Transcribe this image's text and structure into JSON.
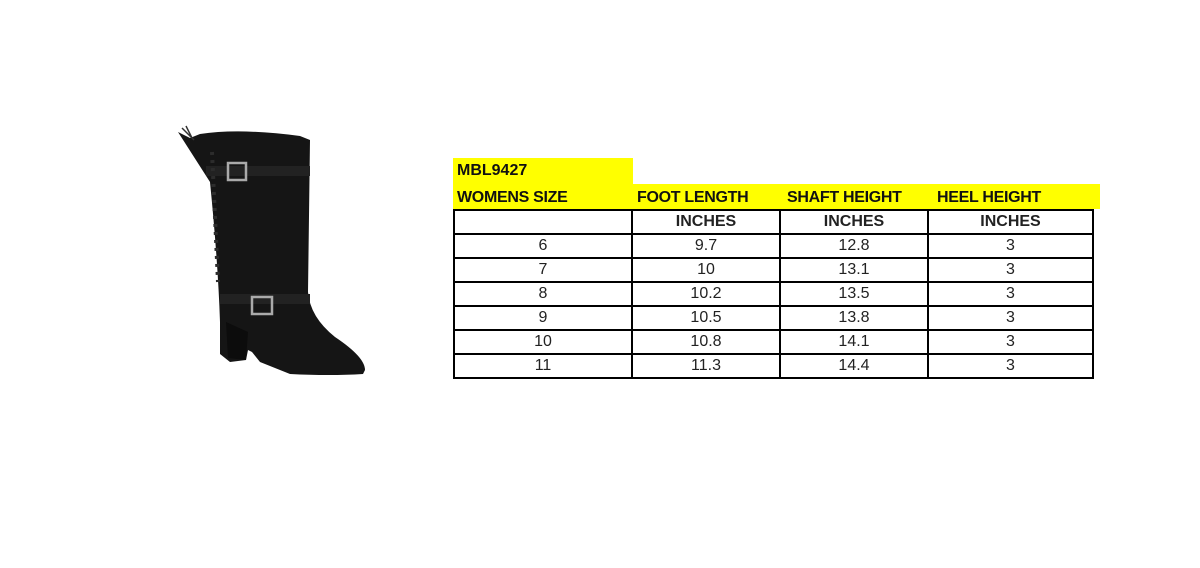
{
  "image": {
    "subject": "black-knee-high-boot"
  },
  "model": "MBL9427",
  "headers": [
    "WOMENS SIZE",
    "FOOT LENGTH",
    "SHAFT HEIGHT",
    "HEEL HEIGHT"
  ],
  "units": [
    "",
    "INCHES",
    "INCHES",
    "INCHES"
  ],
  "rows": [
    [
      "6",
      "9.7",
      "12.8",
      "3"
    ],
    [
      "7",
      "10",
      "13.1",
      "3"
    ],
    [
      "8",
      "10.2",
      "13.5",
      "3"
    ],
    [
      "9",
      "10.5",
      "13.8",
      "3"
    ],
    [
      "10",
      "10.8",
      "14.1",
      "3"
    ],
    [
      "11",
      "11.3",
      "14.4",
      "3"
    ]
  ],
  "colors": {
    "header_highlight": "#ffff00",
    "border": "#000000"
  }
}
